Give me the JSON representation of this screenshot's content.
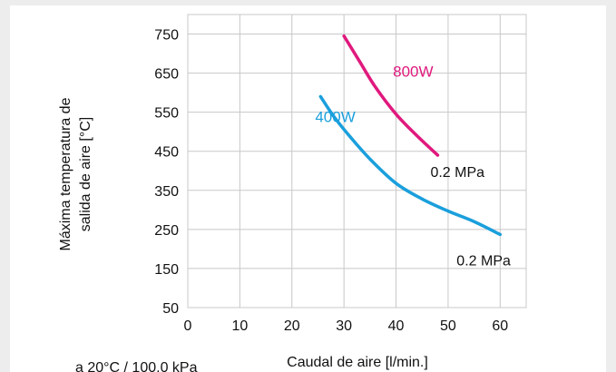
{
  "chart_data": {
    "type": "line",
    "title": "",
    "xlabel": "Caudal de aire [l/min.]",
    "ylabel_lines": [
      "Máxima temperatura de",
      "salida de aire [°C]"
    ],
    "xlim": [
      0,
      65
    ],
    "ylim": [
      50,
      800
    ],
    "x_ticks": [
      "0",
      "10",
      "20",
      "30",
      "40",
      "50",
      "60"
    ],
    "y_ticks": [
      "750",
      "650",
      "550",
      "450",
      "350",
      "250",
      "150",
      "50"
    ],
    "grid": true,
    "series": [
      {
        "name": "800W",
        "color": "#e0197d",
        "end_label": "0.2 MPa",
        "points": [
          [
            30,
            745
          ],
          [
            33,
            680
          ],
          [
            36,
            615
          ],
          [
            40,
            545
          ],
          [
            44,
            490
          ],
          [
            48,
            440
          ]
        ]
      },
      {
        "name": "400W",
        "color": "#1a9fdc",
        "end_label": "0.2 MPa",
        "points": [
          [
            25.5,
            590
          ],
          [
            28,
            540
          ],
          [
            31,
            490
          ],
          [
            35,
            430
          ],
          [
            40,
            368
          ],
          [
            45,
            328
          ],
          [
            50,
            297
          ],
          [
            55,
            270
          ],
          [
            60,
            237
          ]
        ]
      }
    ],
    "footnote": "a 20°C / 100.0 kPa"
  }
}
